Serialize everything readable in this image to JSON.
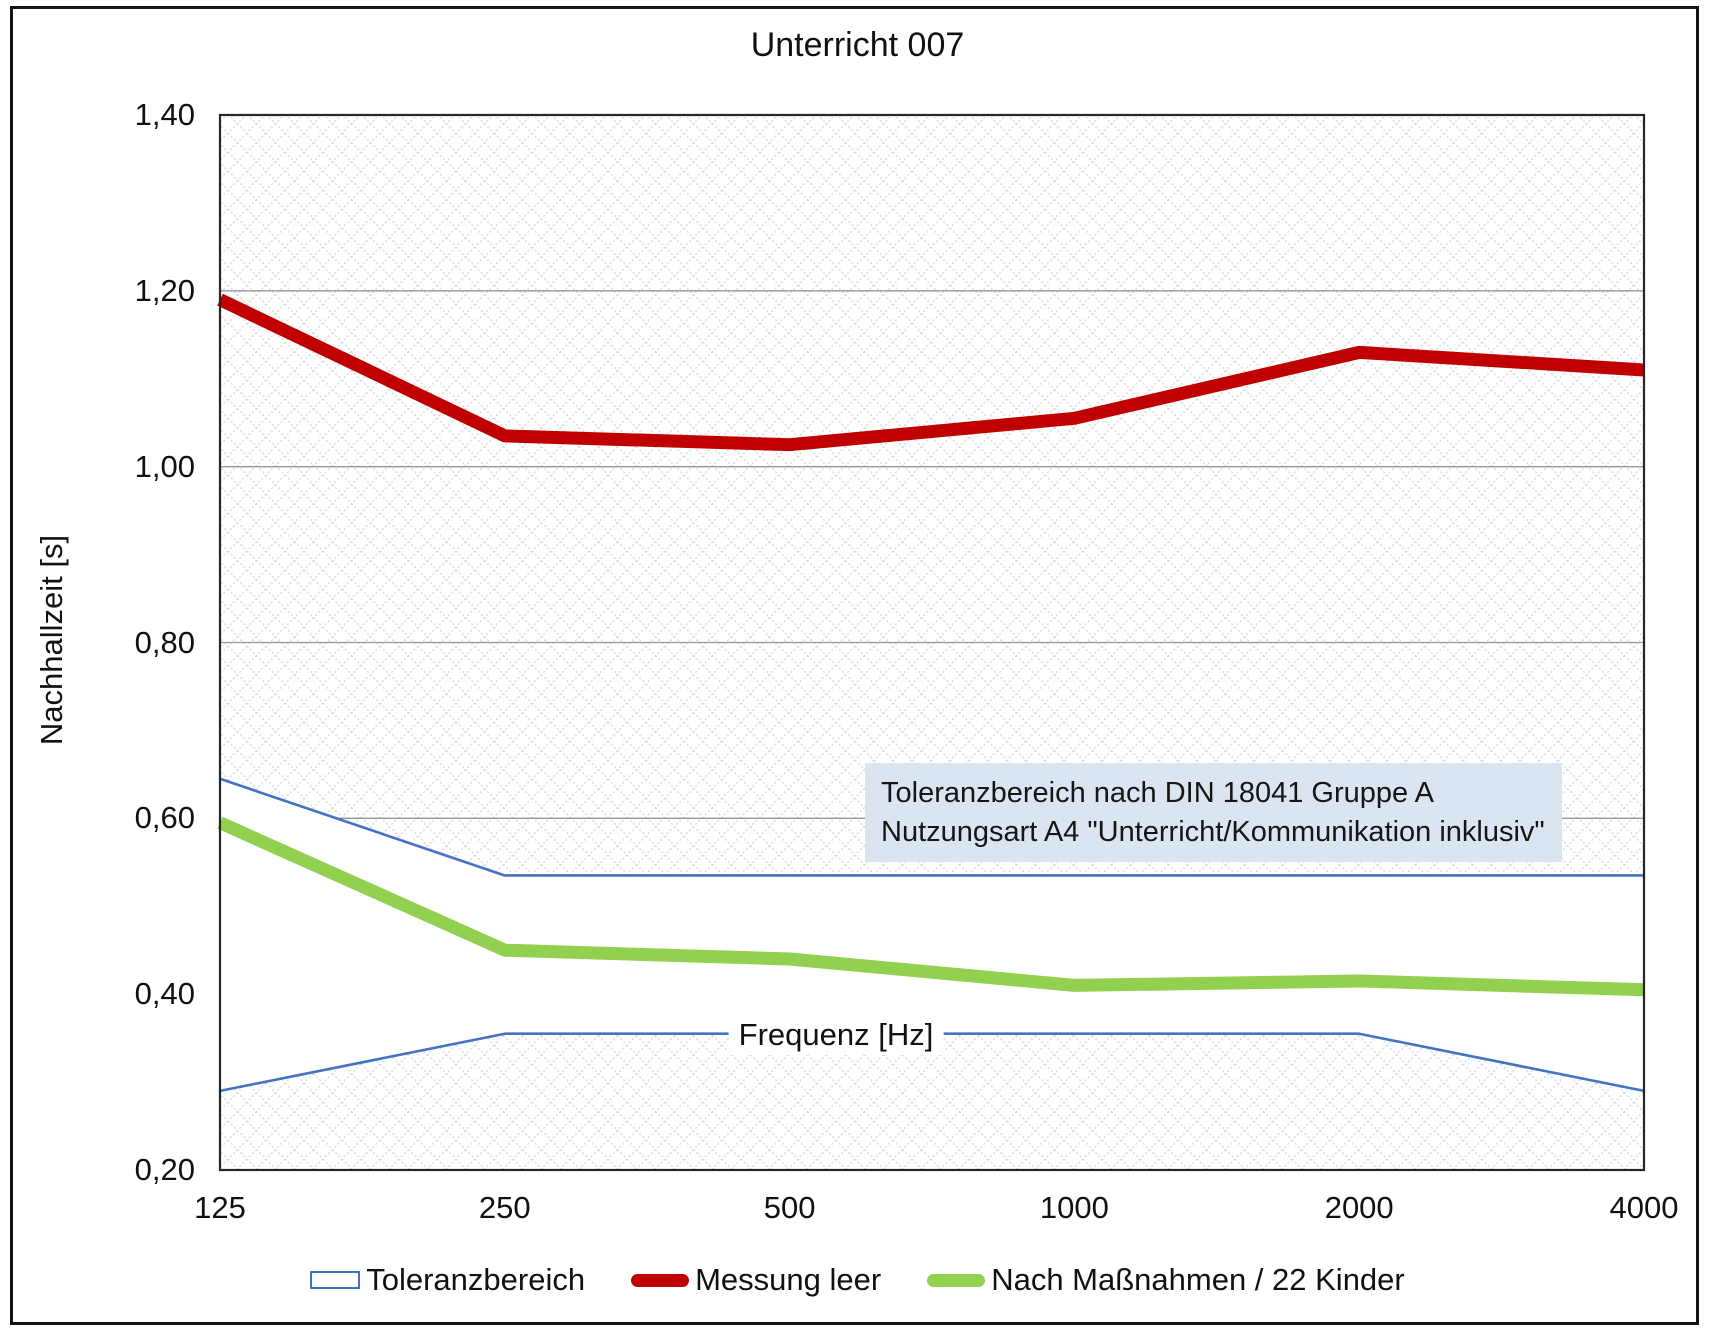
{
  "title": "Unterricht 007",
  "y_axis": {
    "label": "Nachhallzeit [s]",
    "ticks": [
      {
        "label": "1,40",
        "value": 1.4
      },
      {
        "label": "1,20",
        "value": 1.2
      },
      {
        "label": "1,00",
        "value": 1.0
      },
      {
        "label": "0,80",
        "value": 0.8
      },
      {
        "label": "0,60",
        "value": 0.6
      },
      {
        "label": "0,40",
        "value": 0.4
      },
      {
        "label": "0,20",
        "value": 0.2
      }
    ]
  },
  "x_axis": {
    "label": "Frequenz [Hz]",
    "ticks": [
      "125",
      "250",
      "500",
      "1000",
      "2000",
      "4000"
    ]
  },
  "annotation": {
    "line1": "Toleranzbereich nach DIN 18041 Gruppe A",
    "line2": "Nutzungsart A4 \"Unterricht/Kommunikation inklusiv\""
  },
  "legend": [
    {
      "label": "Toleranzbereich",
      "swatch": "band",
      "color": "#4472c4"
    },
    {
      "label": "Messung leer",
      "swatch": "line",
      "color": "#c00000"
    },
    {
      "label": "Nach Maßnahmen / 22 Kinder",
      "swatch": "line",
      "color": "#92d050"
    }
  ],
  "colors": {
    "tolerance_line": "#4472c4",
    "tolerance_fill": "#ffffff",
    "measurement": "#c00000",
    "after_measures": "#92d050",
    "gridline": "#969696",
    "plot_border": "#262626",
    "hatch": "#d9d9d9",
    "annotation_bg": "#dbe5f1"
  },
  "chart_data": {
    "type": "line",
    "title": "Unterricht 007",
    "xlabel": "Frequenz [Hz]",
    "ylabel": "Nachhallzeit [s]",
    "x": [
      125,
      250,
      500,
      1000,
      2000,
      4000
    ],
    "x_scale": "categorical (octave bands)",
    "ylim": [
      0.2,
      1.4
    ],
    "ytick_step": 0.2,
    "grid": "horizontal only",
    "legend_position": "bottom",
    "background": "gray diagonal crosshatch outside tolerance band, white inside",
    "tolerance_band": {
      "name": "Toleranzbereich",
      "note": "Toleranzbereich nach DIN 18041 Gruppe A, Nutzungsart A4 \"Unterricht/Kommunikation inklusiv\"",
      "upper": [
        0.645,
        0.535,
        0.535,
        0.535,
        0.535,
        0.535
      ],
      "lower": [
        0.29,
        0.355,
        0.355,
        0.355,
        0.355,
        0.29
      ]
    },
    "series": [
      {
        "name": "Messung leer",
        "color": "#c00000",
        "values": [
          1.19,
          1.035,
          1.025,
          1.055,
          1.13,
          1.11
        ]
      },
      {
        "name": "Nach Maßnahmen / 22 Kinder",
        "color": "#92d050",
        "values": [
          0.595,
          0.45,
          0.44,
          0.41,
          0.415,
          0.405
        ]
      }
    ]
  }
}
